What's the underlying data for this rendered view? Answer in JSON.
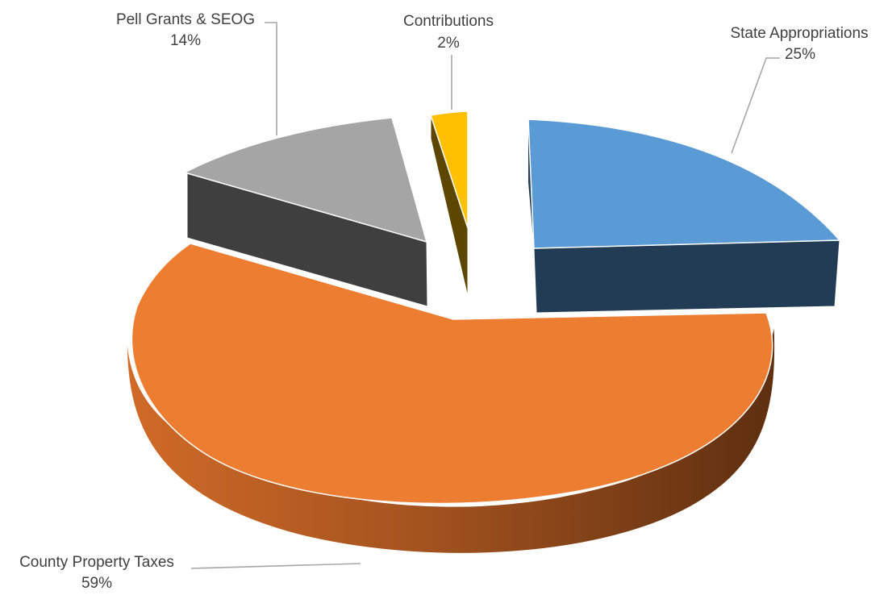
{
  "chart_data": {
    "type": "pie",
    "variant": "3d-exploded",
    "title": "",
    "slices": [
      {
        "label": "State Appropriations",
        "value": 25,
        "value_label": "25%",
        "color": "#5b9bd5",
        "side_color": "#213b53"
      },
      {
        "label": "County Property Taxes",
        "value": 59,
        "value_label": "59%",
        "color": "#ed7d31",
        "side_color": "#c46225"
      },
      {
        "label": "Pell Grants & SEOG",
        "value": 14,
        "value_label": "14%",
        "color": "#a5a5a5",
        "side_color": "#3d3d3d"
      },
      {
        "label": "Contributions",
        "value": 2,
        "value_label": "2%",
        "color": "#ffc000",
        "side_color": "#5a4500"
      }
    ],
    "legend": "none",
    "data_labels": "outside with leader lines"
  }
}
